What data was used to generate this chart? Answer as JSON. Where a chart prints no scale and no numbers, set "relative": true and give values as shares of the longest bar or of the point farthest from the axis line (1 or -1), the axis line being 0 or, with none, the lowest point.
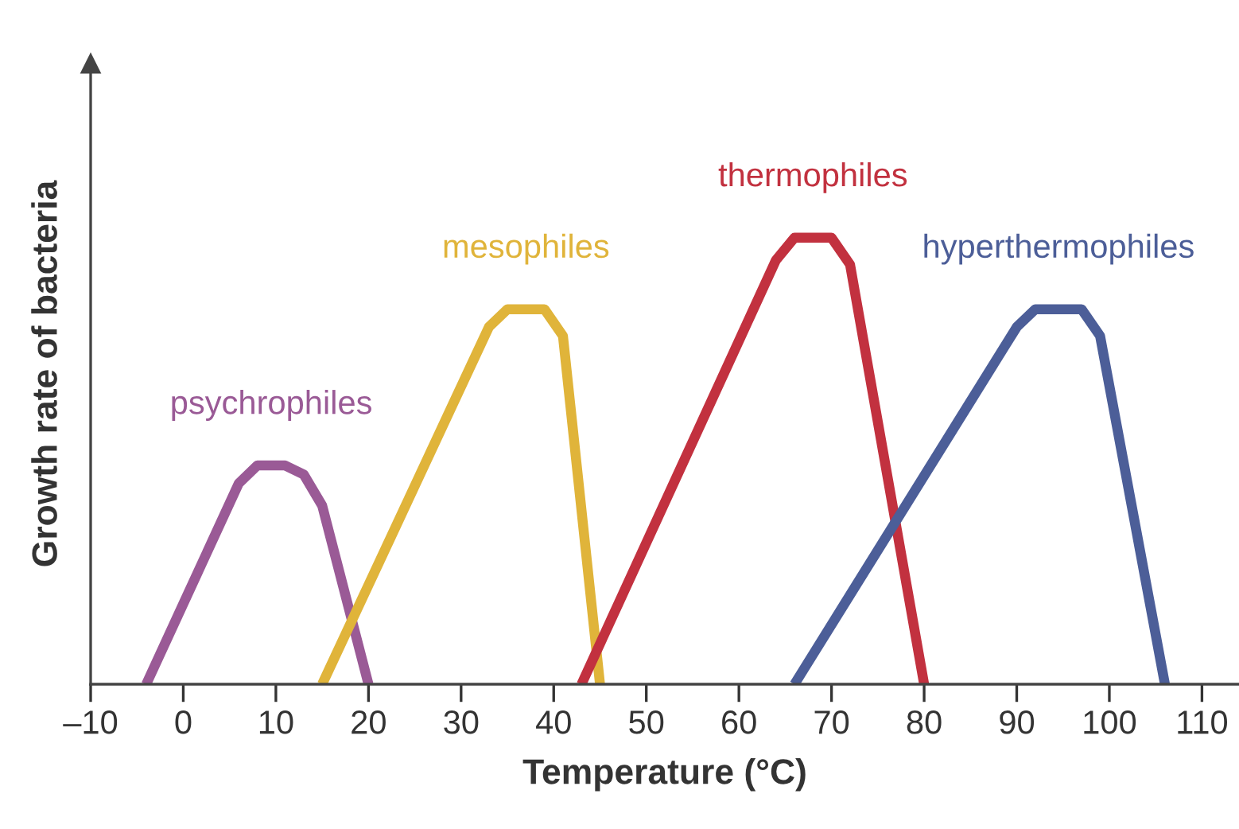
{
  "chart_data": {
    "type": "line",
    "relative": true,
    "xlabel": "Temperature (°C)",
    "ylabel": "Growth rate of bacteria",
    "xlim": [
      -10,
      114
    ],
    "xticks": [
      {
        "value": -10,
        "label": "–10"
      },
      0,
      10,
      20,
      30,
      40,
      50,
      60,
      70,
      80,
      90,
      100,
      110
    ],
    "grid": false,
    "legend": false,
    "marker": "none",
    "line_style": "solid",
    "series": [
      {
        "name": "psychrophiles",
        "color": "#9a5a96",
        "x": [
          -4,
          6,
          8,
          11,
          13,
          15,
          20
        ],
        "values": [
          0,
          0.45,
          0.49,
          0.49,
          0.47,
          0.4,
          0
        ]
      },
      {
        "name": "mesophiles",
        "color": "#e0b43a",
        "x": [
          15,
          33,
          35,
          39,
          41,
          45
        ],
        "values": [
          0,
          0.8,
          0.84,
          0.84,
          0.78,
          0
        ]
      },
      {
        "name": "thermophiles",
        "color": "#c2313f",
        "x": [
          43,
          64,
          66,
          70,
          72,
          80
        ],
        "values": [
          0,
          0.95,
          1,
          1,
          0.94,
          0
        ]
      },
      {
        "name": "hyperthermophiles",
        "color": "#4c5e98",
        "x": [
          66,
          90,
          92,
          97,
          99,
          106
        ],
        "values": [
          0,
          0.8,
          0.84,
          0.84,
          0.78,
          0
        ]
      }
    ]
  }
}
